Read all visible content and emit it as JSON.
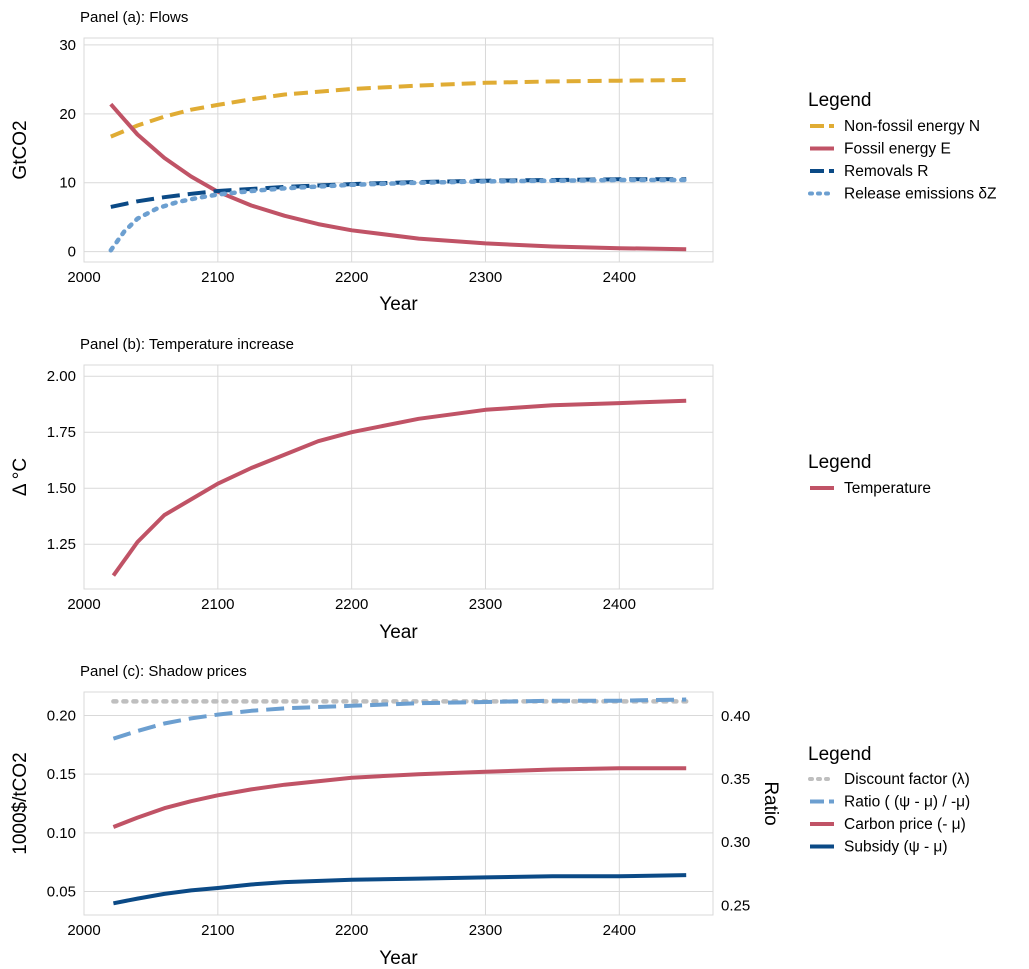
{
  "colors": {
    "nonfossil": "#E0AC34",
    "fossil": "#C05366",
    "removals": "#0B4A86",
    "release": "#6C9FD0",
    "temperature": "#C05366",
    "discount": "#BFBFBF",
    "ratio": "#6C9FD0",
    "carbon": "#C05366",
    "subsidy": "#0B4A86"
  },
  "chart_data": [
    {
      "id": "a",
      "type": "line",
      "title": "Panel (a): Flows",
      "xlabel": "Year",
      "ylabel": "GtCO2",
      "xlim": [
        2000,
        2470
      ],
      "ylim": [
        -1.5,
        31
      ],
      "xticks": [
        "2000",
        "2100",
        "2200",
        "2300",
        "2400"
      ],
      "yticks": [
        "0",
        "10",
        "20",
        "30"
      ],
      "grid": true,
      "legend_title": "Legend",
      "legend_position": "right",
      "series": [
        {
          "name": "Non-fossil energy N",
          "style": "dashed",
          "color": "#E0AC34",
          "x": [
            2020,
            2040,
            2060,
            2080,
            2100,
            2125,
            2150,
            2200,
            2250,
            2300,
            2350,
            2400,
            2450
          ],
          "y": [
            16.7,
            18.3,
            19.6,
            20.6,
            21.3,
            22.1,
            22.8,
            23.6,
            24.1,
            24.5,
            24.7,
            24.8,
            24.9
          ]
        },
        {
          "name": "Fossil energy E",
          "style": "solid",
          "color": "#C05366",
          "x": [
            2020,
            2040,
            2060,
            2080,
            2100,
            2125,
            2150,
            2175,
            2200,
            2250,
            2300,
            2350,
            2400,
            2450
          ],
          "y": [
            21.4,
            17.0,
            13.6,
            10.9,
            8.7,
            6.7,
            5.2,
            4.0,
            3.1,
            1.9,
            1.2,
            0.75,
            0.5,
            0.35
          ]
        },
        {
          "name": "Removals R",
          "style": "longdash",
          "color": "#0B4A86",
          "x": [
            2020,
            2040,
            2060,
            2080,
            2100,
            2150,
            2200,
            2250,
            2300,
            2350,
            2400,
            2450
          ],
          "y": [
            6.5,
            7.3,
            7.9,
            8.4,
            8.8,
            9.4,
            9.8,
            10.1,
            10.3,
            10.4,
            10.5,
            10.5
          ]
        },
        {
          "name": "Release emissions δZ",
          "style": "dotted",
          "color": "#6C9FD0",
          "x": [
            2020,
            2030,
            2040,
            2055,
            2070,
            2085,
            2100,
            2125,
            2150,
            2200,
            2250,
            2300,
            2350,
            2400,
            2450
          ],
          "y": [
            0.2,
            2.9,
            4.8,
            6.3,
            7.2,
            7.8,
            8.3,
            8.8,
            9.2,
            9.7,
            10.0,
            10.2,
            10.3,
            10.4,
            10.4
          ]
        }
      ]
    },
    {
      "id": "b",
      "type": "line",
      "title": "Panel (b): Temperature increase",
      "xlabel": "Year",
      "ylabel": "Δ °C",
      "xlim": [
        2000,
        2470
      ],
      "ylim": [
        1.05,
        2.05
      ],
      "xticks": [
        "2000",
        "2100",
        "2200",
        "2300",
        "2400"
      ],
      "yticks": [
        "1.25",
        "1.50",
        "1.75",
        "2.00"
      ],
      "grid": true,
      "legend_title": "Legend",
      "legend_position": "right",
      "series": [
        {
          "name": "Temperature",
          "style": "solid",
          "color": "#C05366",
          "x": [
            2022,
            2040,
            2060,
            2080,
            2100,
            2125,
            2150,
            2175,
            2200,
            2250,
            2300,
            2350,
            2400,
            2450
          ],
          "y": [
            1.11,
            1.26,
            1.38,
            1.45,
            1.52,
            1.59,
            1.65,
            1.71,
            1.75,
            1.81,
            1.85,
            1.87,
            1.88,
            1.89
          ]
        }
      ]
    },
    {
      "id": "c",
      "type": "line",
      "title": "Panel (c): Shadow prices",
      "xlabel": "Year",
      "ylabel": "1000$/tCO2",
      "ylabel_right": "Ratio",
      "xlim": [
        2000,
        2470
      ],
      "ylim": [
        0.03,
        0.22
      ],
      "ylim_right": [
        0.2424,
        0.4189
      ],
      "xticks": [
        "2000",
        "2100",
        "2200",
        "2300",
        "2400"
      ],
      "yticks": [
        "0.05",
        "0.10",
        "0.15",
        "0.20"
      ],
      "yticks_right": [
        "0.25",
        "0.30",
        "0.35",
        "0.40"
      ],
      "grid": true,
      "legend_title": "Legend",
      "legend_position": "right",
      "series": [
        {
          "name": "Discount factor (λ)",
          "style": "dotted",
          "color": "#BFBFBF",
          "axis": "left",
          "x": [
            2022,
            2100,
            2200,
            2300,
            2400,
            2450
          ],
          "y": [
            0.212,
            0.212,
            0.212,
            0.212,
            0.212,
            0.212
          ]
        },
        {
          "name": "Ratio ( (ψ - μ) / -μ)",
          "style": "longdash",
          "color": "#6C9FD0",
          "axis": "right",
          "x": [
            2022,
            2040,
            2060,
            2080,
            2100,
            2125,
            2150,
            2200,
            2250,
            2300,
            2350,
            2400,
            2450
          ],
          "y": [
            0.382,
            0.388,
            0.394,
            0.398,
            0.401,
            0.404,
            0.406,
            0.408,
            0.41,
            0.411,
            0.412,
            0.412,
            0.413
          ]
        },
        {
          "name": "Carbon price (- μ)",
          "style": "solid",
          "color": "#C05366",
          "axis": "left",
          "x": [
            2022,
            2040,
            2060,
            2080,
            2100,
            2125,
            2150,
            2200,
            2250,
            2300,
            2350,
            2400,
            2450
          ],
          "y": [
            0.105,
            0.113,
            0.121,
            0.127,
            0.132,
            0.137,
            0.141,
            0.147,
            0.15,
            0.152,
            0.154,
            0.155,
            0.155
          ]
        },
        {
          "name": "Subsidy (ψ - μ)",
          "style": "solid",
          "color": "#0B4A86",
          "axis": "left",
          "x": [
            2022,
            2040,
            2060,
            2080,
            2100,
            2125,
            2150,
            2200,
            2250,
            2300,
            2350,
            2400,
            2450
          ],
          "y": [
            0.04,
            0.044,
            0.048,
            0.051,
            0.053,
            0.056,
            0.058,
            0.06,
            0.061,
            0.062,
            0.063,
            0.063,
            0.064
          ]
        }
      ]
    }
  ]
}
